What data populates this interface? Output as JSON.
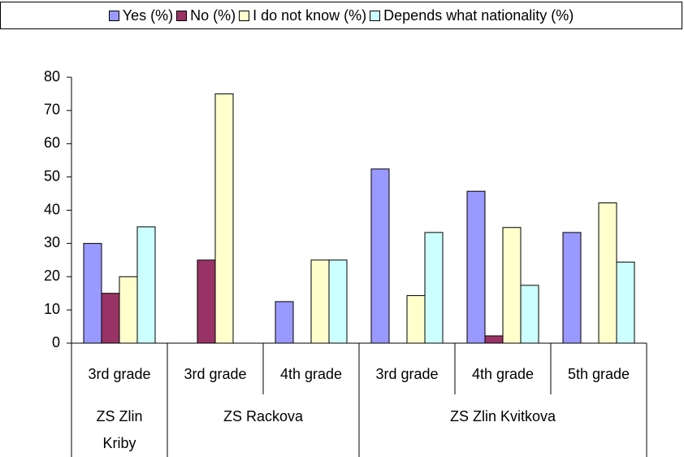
{
  "chart_data": {
    "type": "bar",
    "categories": [
      "3rd grade",
      "3rd grade",
      "4th grade",
      "3rd grade",
      "4th grade",
      "5th grade"
    ],
    "category_groups": [
      {
        "name": "ZS Zlin Kriby",
        "count": 1
      },
      {
        "name": "ZS Rackova",
        "count": 2
      },
      {
        "name": "ZS Zlin Kvitkova",
        "count": 3
      }
    ],
    "series": [
      {
        "name": "Yes (%)",
        "color": "#9999ff",
        "values": [
          30,
          0,
          12.5,
          52.4,
          45.7,
          33.3
        ]
      },
      {
        "name": "No (%)",
        "color": "#993366",
        "values": [
          15,
          25,
          0,
          0,
          2.2,
          0
        ]
      },
      {
        "name": "I do not know (%)",
        "color": "#ffffcc",
        "values": [
          20,
          75,
          25,
          14.3,
          34.8,
          42.2
        ]
      },
      {
        "name": "Depends what nationality (%)",
        "color": "#ccffff",
        "values": [
          35,
          0,
          25,
          33.3,
          17.4,
          24.4
        ]
      }
    ],
    "ylim": [
      0,
      80
    ],
    "yticks": [
      0,
      10,
      20,
      30,
      40,
      50,
      60,
      70,
      80
    ],
    "grid": false,
    "legend": "top"
  }
}
